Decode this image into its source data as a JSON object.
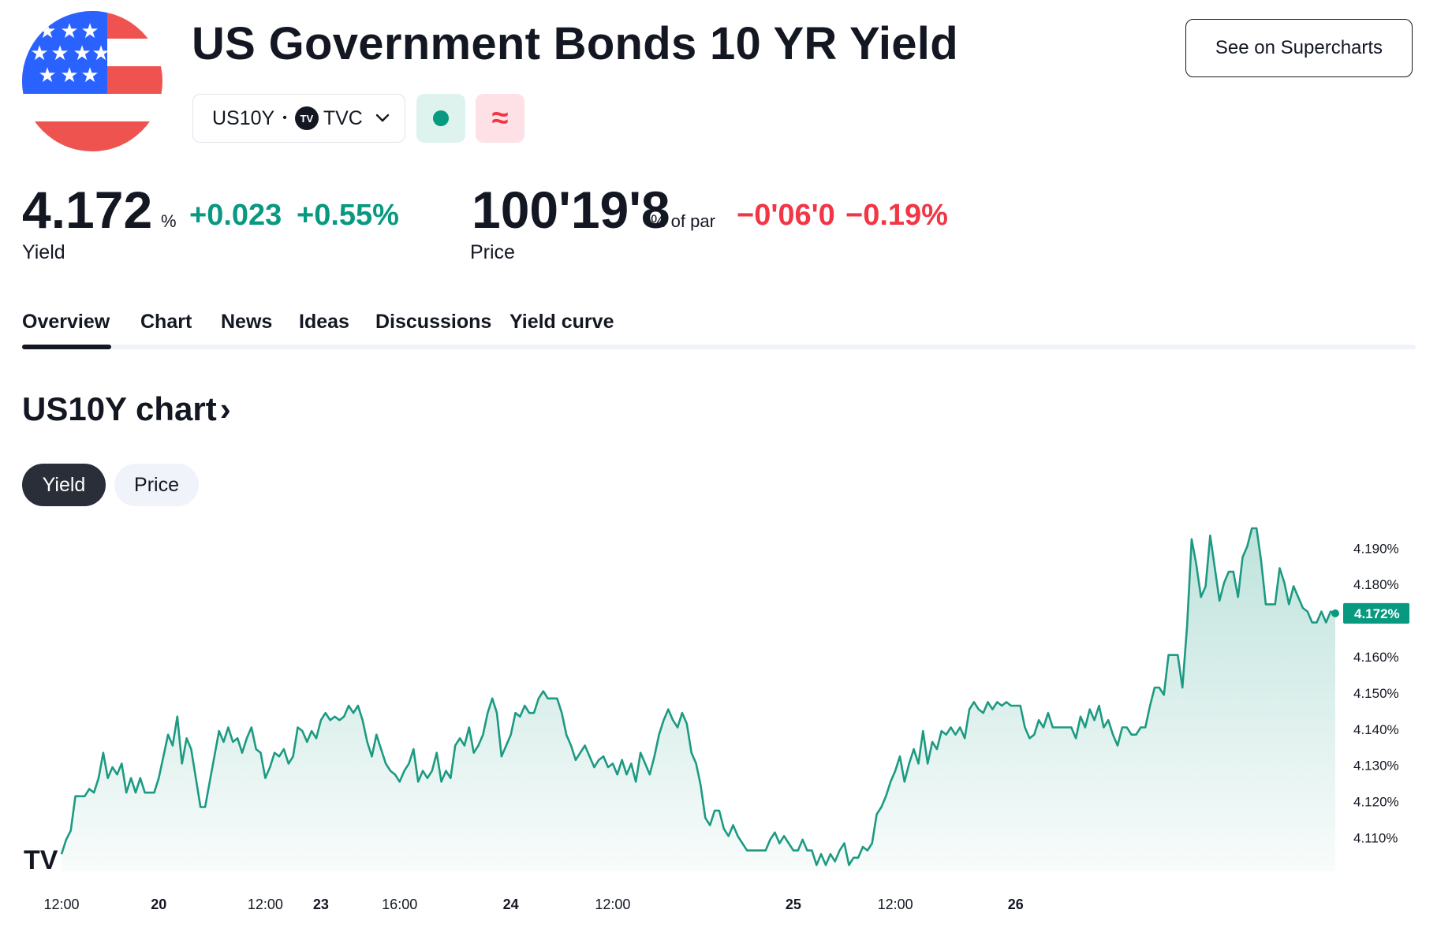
{
  "header": {
    "title": "US Government Bonds 10 YR Yield",
    "supercharts_label": "See on Supercharts",
    "symbol": "US10Y",
    "separator": "•",
    "exchange_logo": "TV",
    "exchange": "TVC",
    "flag_icon": "us-flag",
    "market_status": "open",
    "delay_symbol": "≈"
  },
  "quote": {
    "yield_value": "4.172",
    "yield_unit": "%",
    "yield_change": "+0.023",
    "yield_change_pct": "+0.55%",
    "yield_label": "Yield",
    "price_value": "100'19'8",
    "price_unit": "% of par",
    "price_change": "−0'06'0",
    "price_change_pct": "−0.19%",
    "price_label": "Price"
  },
  "tabs": [
    {
      "label": "Overview",
      "active": true
    },
    {
      "label": "Chart"
    },
    {
      "label": "News"
    },
    {
      "label": "Ideas"
    },
    {
      "label": "Discussions"
    },
    {
      "label": "Yield curve"
    }
  ],
  "chart_section": {
    "title": "US10Y chart",
    "arrow": "›",
    "toggle": [
      "Yield",
      "Price"
    ],
    "active_toggle": "Yield"
  },
  "colors": {
    "positive": "#089981",
    "negative": "#f23645",
    "line": "#1c9a82"
  },
  "chart_data": {
    "type": "area",
    "series": [
      {
        "values": [
          4.1055,
          4.1095,
          4.112,
          4.1215,
          4.1215,
          4.1215,
          4.1235,
          4.1225,
          4.1265,
          4.1335,
          4.1265,
          4.1295,
          4.1275,
          4.1305,
          4.1225,
          4.1265,
          4.1225,
          4.1265,
          4.1225,
          4.1225,
          4.1225,
          4.1265,
          4.1325,
          4.1385,
          4.1355,
          4.1435,
          4.1305,
          4.1375,
          4.1345,
          4.1265,
          4.1185,
          4.1185,
          4.1255,
          4.1325,
          4.1395,
          4.1365,
          4.1405,
          4.1365,
          4.1375,
          4.1335,
          4.1375,
          4.1405,
          4.1345,
          4.1335,
          4.1265,
          4.1295,
          4.1335,
          4.1325,
          4.1345,
          4.1305,
          4.1325,
          4.1405,
          4.1395,
          4.1365,
          4.1395,
          4.1375,
          4.1425,
          4.1445,
          4.1425,
          4.1435,
          4.1425,
          4.1435,
          4.1465,
          4.1445,
          4.1465,
          4.1425,
          4.1365,
          4.1325,
          4.1385,
          4.1345,
          4.1305,
          4.1285,
          4.1275,
          4.1255,
          4.1285,
          4.1305,
          4.1345,
          4.1255,
          4.1285,
          4.1265,
          4.1285,
          4.1335,
          4.1255,
          4.1285,
          4.1265,
          4.1355,
          4.1375,
          4.1355,
          4.1405,
          4.1335,
          4.1355,
          4.1385,
          4.1445,
          4.1485,
          4.1445,
          4.1325,
          4.1355,
          4.1385,
          4.1445,
          4.1435,
          4.1465,
          4.1445,
          4.1445,
          4.1485,
          4.1505,
          4.1485,
          4.1485,
          4.1485,
          4.1445,
          4.1385,
          4.1355,
          4.1315,
          4.1335,
          4.1355,
          4.1325,
          4.1295,
          4.1315,
          4.1325,
          4.1295,
          4.1305,
          4.1275,
          4.1315,
          4.1275,
          4.1305,
          4.1255,
          4.1335,
          4.1305,
          4.1275,
          4.1325,
          4.1385,
          4.1425,
          4.1455,
          4.1425,
          4.1405,
          4.1445,
          4.1415,
          4.1335,
          4.1305,
          4.1245,
          4.1155,
          4.1135,
          4.1175,
          4.1175,
          4.1125,
          4.1105,
          4.1135,
          4.1105,
          4.1085,
          4.1065,
          4.1065,
          4.1065,
          4.1065,
          4.1065,
          4.1095,
          4.1115,
          4.1085,
          4.1105,
          4.1085,
          4.1065,
          4.1065,
          4.1095,
          4.1065,
          4.1065,
          4.1025,
          4.1055,
          4.1025,
          4.1055,
          4.1035,
          4.1065,
          4.1085,
          4.1025,
          4.1045,
          4.1045,
          4.1075,
          4.1065,
          4.1085,
          4.1165,
          4.1185,
          4.1215,
          4.1255,
          4.1285,
          4.1325,
          4.1255,
          4.1305,
          4.1345,
          4.1305,
          4.1395,
          4.1305,
          4.1365,
          4.1345,
          4.1395,
          4.1385,
          4.1405,
          4.1385,
          4.1405,
          4.1375,
          4.1455,
          4.1475,
          4.1455,
          4.1445,
          4.1475,
          4.1455,
          4.1475,
          4.1465,
          4.1475,
          4.1465,
          4.1465,
          4.1465,
          4.1405,
          4.1375,
          4.1385,
          4.1425,
          4.1405,
          4.1445,
          4.1405,
          4.1405,
          4.1405,
          4.1405,
          4.1405,
          4.1375,
          4.1435,
          4.1405,
          4.1455,
          4.1425,
          4.1465,
          4.1405,
          4.1425,
          4.1385,
          4.1355,
          4.1405,
          4.1405,
          4.1385,
          4.1385,
          4.1405,
          4.1405,
          4.1465,
          4.1515,
          4.1515,
          4.1495,
          4.1605,
          4.1605,
          4.1605,
          4.1515,
          4.1685,
          4.1925,
          4.1855,
          4.1765,
          4.1795,
          4.1935,
          4.1845,
          4.1755,
          4.1805,
          4.1835,
          4.1835,
          4.1765,
          4.1875,
          4.1905,
          4.1955,
          4.1955,
          4.1865,
          4.1745,
          4.1745,
          4.1745,
          4.1845,
          4.1805,
          4.1745,
          4.1795,
          4.1765,
          4.1735,
          4.1725,
          4.1695,
          4.1695,
          4.1725,
          4.1695,
          4.1725,
          4.172
        ]
      }
    ],
    "current_value_label": "4.172%",
    "y_tick_labels": [
      "4.190%",
      "4.180%",
      "4.160%",
      "4.150%",
      "4.140%",
      "4.130%",
      "4.120%",
      "4.110%"
    ],
    "y_ticks": [
      4.19,
      4.18,
      4.16,
      4.15,
      4.14,
      4.13,
      4.12,
      4.11
    ],
    "x_tick_labels": [
      "12:00",
      "20",
      "12:00",
      "23",
      "16:00",
      "24",
      "12:00",
      "25",
      "12:00",
      "26"
    ],
    "x_tick_index": [
      0,
      21,
      44,
      56,
      73,
      97,
      119,
      158,
      180,
      206
    ],
    "ylim": [
      4.1025,
      4.1955
    ],
    "grid": false,
    "legend": "none",
    "watermark": "TV"
  }
}
